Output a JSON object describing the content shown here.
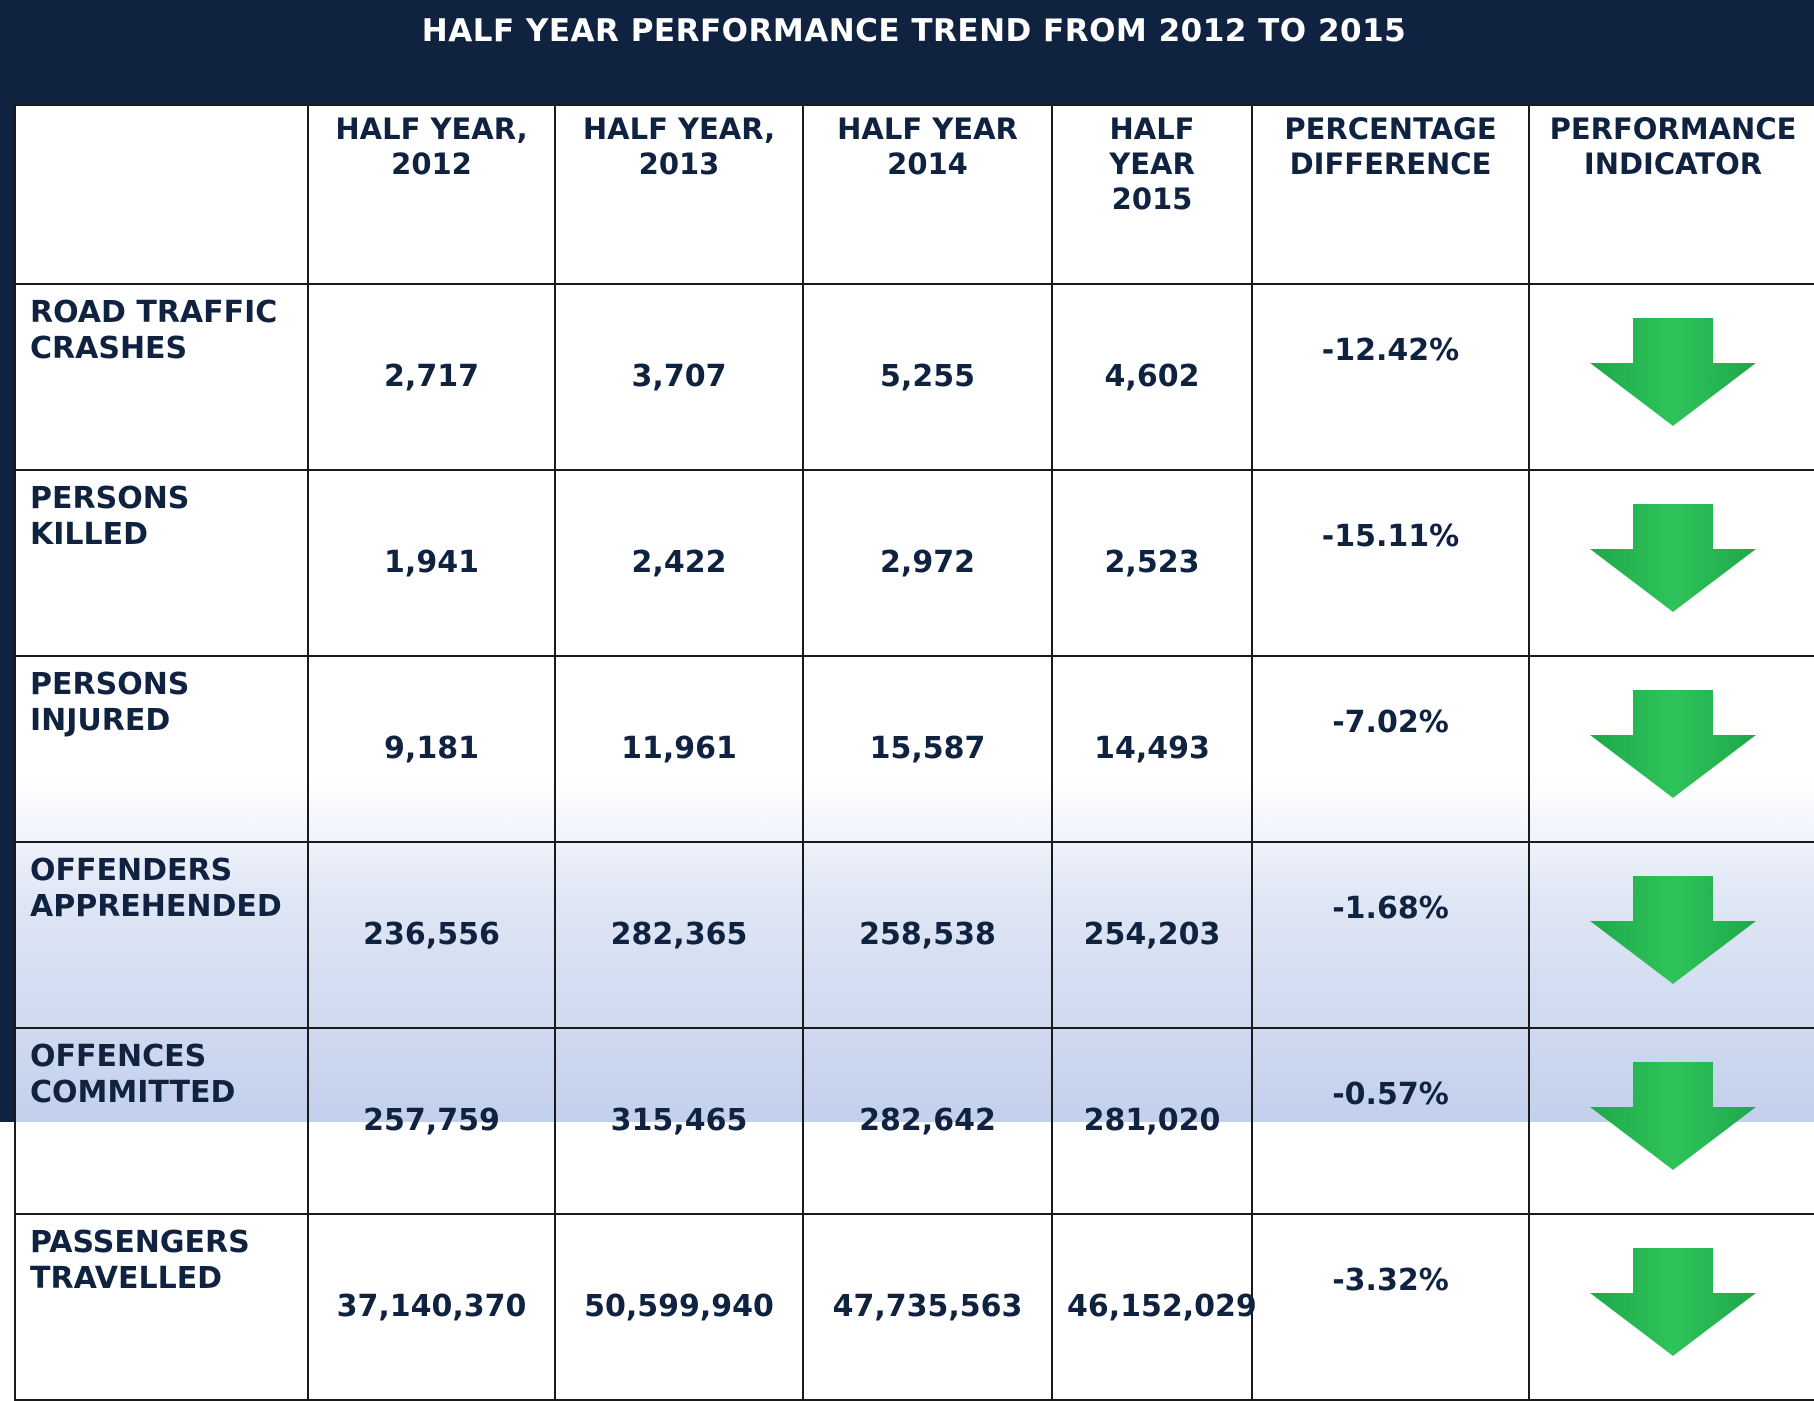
{
  "title": "HALF YEAR PERFORMANCE TREND FROM 2012 TO 2015",
  "table": {
    "header": [
      "HALF YEAR, 2012",
      "HALF YEAR, 2013",
      "HALF YEAR 2014",
      "HALF YEAR 2015",
      "PERCENTAGE DIFFERENCE",
      "PERFORMANCE INDICATOR"
    ],
    "rows": [
      [
        "ROAD TRAFFIC CRASHES",
        "2,717",
        "3,707",
        "5,255",
        "4,602",
        "-12.42%"
      ],
      [
        "PERSONS KILLED",
        "1,941",
        "2,422",
        "2,972",
        "2,523",
        "-15.11%"
      ],
      [
        "PERSONS INJURED",
        "9,181",
        "11,961",
        "15,587",
        "14,493",
        "-7.02%"
      ],
      [
        "OFFENDERS APPREHENDED",
        "236,556",
        "282,365",
        "258,538",
        "254,203",
        "-1.68%"
      ],
      [
        "OFFENCES COMMITTED",
        "257,759",
        "315,465",
        "282,642",
        "281,020",
        "-0.57%"
      ],
      [
        "PASSENGERS TRAVELLED",
        "37,140,370",
        "50,599,940",
        "47,735,563",
        "46,152,029",
        "-3.32%"
      ]
    ]
  }
}
